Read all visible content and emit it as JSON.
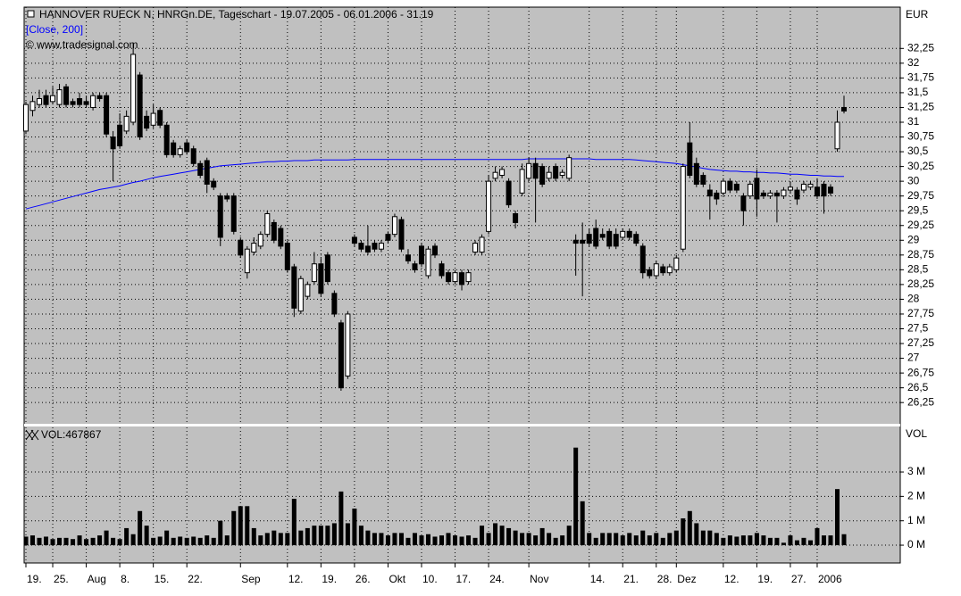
{
  "chart_data": [
    {
      "type": "candlestick",
      "title": "HANNOVER RUECK N, HNRGn.DE, Tageschart - 19.07.2005 - 06.01.2006 - 31.19",
      "source": "© www.tradesignal.com",
      "ylabel": "EUR",
      "up_color": "#ffffff",
      "down_color": "#000000",
      "grid": true,
      "categories": [
        "19.",
        null,
        null,
        null,
        "25.",
        null,
        null,
        null,
        null,
        "Aug",
        null,
        null,
        null,
        null,
        "8.",
        null,
        null,
        null,
        null,
        "15.",
        null,
        null,
        null,
        null,
        "22.",
        null,
        null,
        null,
        null,
        null,
        null,
        null,
        "Sep",
        null,
        null,
        null,
        null,
        null,
        null,
        "12.",
        null,
        null,
        null,
        null,
        "19.",
        null,
        null,
        null,
        null,
        "26.",
        null,
        null,
        null,
        null,
        "Okt",
        null,
        null,
        null,
        null,
        "10.",
        null,
        null,
        null,
        null,
        "17.",
        null,
        null,
        null,
        null,
        "24.",
        null,
        null,
        null,
        null,
        null,
        "Nov",
        null,
        null,
        null,
        null,
        null,
        null,
        null,
        null,
        "14.",
        null,
        null,
        null,
        null,
        "21.",
        null,
        null,
        null,
        null,
        "28.",
        null,
        null,
        "Dez",
        null,
        null,
        null,
        null,
        null,
        null,
        "12.",
        null,
        null,
        null,
        null,
        "19.",
        null,
        null,
        null,
        null,
        "27.",
        null,
        null,
        null,
        "2006",
        null,
        null,
        null,
        null
      ],
      "open": [
        30.85,
        31.2,
        31.3,
        31.45,
        31.35,
        31.3,
        31.6,
        31.35,
        31.4,
        31.35,
        31.25,
        31.45,
        31.45,
        30.75,
        30.95,
        30.85,
        31.0,
        31.8,
        31.1,
        30.95,
        31.2,
        30.95,
        30.65,
        30.45,
        30.65,
        30.55,
        30.3,
        30.35,
        30.0,
        29.75,
        29.75,
        29.75,
        29.0,
        28.45,
        28.8,
        28.9,
        29.1,
        29.3,
        29.2,
        28.95,
        28.55,
        27.8,
        28.05,
        28.3,
        28.6,
        28.75,
        28.1,
        27.6,
        26.7,
        29.05,
        28.95,
        28.9,
        28.95,
        28.85,
        29.1,
        29.1,
        29.35,
        28.75,
        28.6,
        28.9,
        28.4,
        28.9,
        28.6,
        28.45,
        28.3,
        28.45,
        28.3,
        28.8,
        28.8,
        29.15,
        30.05,
        30.1,
        30.0,
        29.45,
        29.8,
        30.05,
        30.3,
        30.25,
        30.05,
        30.25,
        30.1,
        30.05,
        29.0,
        29.0,
        29.1,
        29.2,
        29.1,
        29.15,
        29.1,
        29.05,
        29.15,
        29.1,
        28.9,
        28.5,
        28.4,
        28.55,
        28.45,
        28.5,
        28.85,
        30.65,
        30.3,
        30.1,
        29.85,
        29.8,
        29.8,
        30.0,
        29.95,
        29.75,
        29.75,
        30.05,
        29.8,
        29.75,
        29.8,
        29.75,
        29.85,
        29.85,
        29.85,
        29.9,
        29.9,
        29.95,
        29.9,
        30.55,
        31.25
      ],
      "high": [
        31.35,
        31.45,
        31.55,
        31.55,
        31.6,
        31.65,
        31.65,
        31.4,
        31.5,
        31.45,
        31.5,
        31.5,
        31.5,
        30.85,
        31.15,
        31.2,
        32.35,
        31.85,
        31.2,
        31.3,
        31.25,
        31.0,
        30.7,
        30.6,
        30.7,
        30.6,
        30.35,
        30.4,
        30.05,
        29.8,
        29.8,
        29.8,
        29.05,
        28.9,
        29.05,
        29.15,
        29.5,
        29.35,
        29.25,
        29.0,
        28.6,
        28.4,
        28.3,
        28.8,
        28.7,
        28.8,
        28.15,
        27.65,
        27.8,
        29.1,
        29.0,
        29.25,
        29.0,
        29.0,
        29.15,
        29.45,
        29.4,
        28.85,
        28.65,
        28.95,
        28.9,
        28.95,
        28.65,
        28.5,
        28.5,
        28.5,
        28.5,
        29.0,
        29.1,
        30.1,
        30.25,
        30.25,
        30.05,
        29.5,
        30.3,
        30.4,
        30.4,
        30.3,
        30.25,
        30.3,
        30.2,
        30.45,
        29.1,
        29.3,
        29.2,
        29.35,
        29.2,
        29.2,
        29.2,
        29.2,
        29.2,
        29.15,
        28.95,
        28.55,
        28.65,
        28.6,
        28.6,
        28.75,
        30.3,
        31.0,
        30.4,
        30.15,
        29.95,
        29.85,
        30.05,
        30.05,
        30.0,
        29.8,
        30.0,
        30.2,
        29.85,
        29.85,
        29.85,
        29.9,
        30.0,
        29.9,
        30.0,
        30.0,
        30.05,
        30.0,
        29.95,
        31.2,
        31.45
      ],
      "low": [
        30.8,
        31.1,
        31.25,
        31.25,
        31.3,
        31.25,
        31.25,
        31.25,
        31.25,
        31.25,
        31.2,
        31.35,
        30.75,
        30.0,
        30.55,
        30.8,
        30.95,
        30.7,
        30.85,
        30.9,
        30.9,
        30.4,
        30.4,
        30.4,
        30.45,
        30.25,
        30.05,
        29.8,
        29.85,
        28.9,
        29.65,
        29.1,
        28.7,
        28.35,
        28.75,
        28.85,
        29.05,
        28.95,
        28.85,
        28.45,
        27.7,
        27.75,
        28.0,
        28.25,
        28.05,
        28.25,
        27.7,
        26.45,
        26.65,
        28.9,
        28.8,
        28.75,
        28.8,
        28.8,
        28.95,
        29.05,
        28.8,
        28.6,
        28.45,
        28.55,
        28.35,
        28.7,
        28.35,
        28.25,
        28.25,
        28.15,
        28.25,
        28.75,
        28.75,
        29.1,
        30.0,
        30.05,
        29.55,
        29.2,
        29.75,
        30.0,
        29.3,
        29.9,
        30.0,
        30.0,
        30.05,
        30.0,
        28.4,
        28.05,
        28.9,
        28.85,
        29.0,
        28.85,
        28.85,
        29.0,
        29.0,
        28.9,
        28.35,
        28.35,
        28.35,
        28.4,
        28.4,
        28.45,
        28.8,
        30.05,
        29.9,
        29.9,
        29.35,
        29.6,
        29.75,
        29.8,
        29.8,
        29.25,
        29.7,
        29.4,
        29.7,
        29.7,
        29.3,
        29.7,
        29.8,
        29.6,
        29.8,
        29.85,
        29.7,
        29.45,
        29.75,
        30.5,
        31.15
      ],
      "close": [
        31.3,
        31.35,
        31.4,
        31.3,
        31.45,
        31.55,
        31.3,
        31.3,
        31.3,
        31.3,
        31.45,
        31.4,
        30.8,
        30.55,
        30.6,
        31.1,
        32.15,
        30.75,
        30.9,
        31.15,
        30.95,
        30.45,
        30.45,
        30.55,
        30.5,
        30.3,
        30.1,
        29.95,
        29.9,
        29.05,
        29.7,
        29.15,
        28.75,
        28.85,
        28.95,
        29.1,
        29.45,
        29.0,
        28.9,
        28.5,
        27.85,
        28.35,
        28.25,
        28.6,
        28.1,
        28.3,
        27.75,
        26.5,
        27.75,
        28.95,
        28.85,
        28.8,
        28.85,
        28.95,
        29.0,
        29.4,
        28.85,
        28.65,
        28.5,
        28.6,
        28.85,
        28.75,
        28.4,
        28.3,
        28.45,
        28.25,
        28.45,
        28.95,
        29.05,
        30.0,
        30.15,
        30.2,
        29.6,
        29.3,
        30.2,
        30.3,
        30.05,
        29.95,
        30.15,
        30.05,
        30.15,
        30.4,
        28.95,
        28.95,
        28.95,
        28.9,
        29.05,
        28.9,
        28.9,
        29.15,
        29.05,
        28.95,
        28.45,
        28.4,
        28.6,
        28.45,
        28.55,
        28.7,
        30.25,
        30.1,
        29.95,
        29.95,
        29.75,
        29.7,
        30.0,
        29.85,
        29.85,
        29.5,
        29.95,
        29.7,
        29.75,
        29.8,
        29.75,
        29.85,
        29.9,
        29.7,
        29.95,
        29.95,
        29.75,
        29.75,
        29.8,
        31.0,
        31.19
      ],
      "ma": {
        "name": "[Close, 200]",
        "color": "#0000ff",
        "values": [
          29.53,
          29.56,
          29.59,
          29.62,
          29.65,
          29.68,
          29.71,
          29.74,
          29.77,
          29.8,
          29.83,
          29.86,
          29.88,
          29.9,
          29.92,
          29.95,
          29.98,
          30.0,
          30.03,
          30.06,
          30.08,
          30.1,
          30.12,
          30.14,
          30.16,
          30.18,
          30.2,
          30.22,
          30.24,
          30.26,
          30.27,
          30.28,
          30.29,
          30.3,
          30.31,
          30.32,
          30.33,
          30.33,
          30.34,
          30.34,
          30.35,
          30.35,
          30.35,
          30.36,
          30.36,
          30.36,
          30.36,
          30.36,
          30.36,
          30.37,
          30.37,
          30.37,
          30.37,
          30.37,
          30.37,
          30.37,
          30.37,
          30.37,
          30.37,
          30.37,
          30.37,
          30.37,
          30.37,
          30.37,
          30.37,
          30.37,
          30.37,
          30.37,
          30.37,
          30.37,
          30.37,
          30.37,
          30.37,
          30.37,
          30.37,
          30.38,
          30.38,
          30.38,
          30.38,
          30.38,
          30.38,
          30.38,
          30.38,
          30.38,
          30.38,
          30.37,
          30.37,
          30.37,
          30.37,
          30.37,
          30.37,
          30.36,
          30.35,
          30.34,
          30.33,
          30.32,
          30.31,
          30.3,
          30.28,
          30.26,
          30.24,
          30.22,
          30.2,
          30.19,
          30.18,
          30.17,
          30.17,
          30.16,
          30.16,
          30.15,
          30.15,
          30.14,
          30.14,
          30.13,
          30.12,
          30.12,
          30.11,
          30.1,
          30.1,
          30.09,
          30.09,
          30.08,
          30.08
        ]
      },
      "ylim": [
        25.89,
        32.95
      ],
      "yticks": [
        {
          "value": 26.25,
          "label": "26,25"
        },
        {
          "value": 26.5,
          "label": "26,5"
        },
        {
          "value": 26.75,
          "label": "26,75"
        },
        27,
        {
          "value": 27.25,
          "label": "27,25"
        },
        {
          "value": 27.5,
          "label": "27,5"
        },
        {
          "value": 27.75,
          "label": "27,75"
        },
        28,
        {
          "value": 28.25,
          "label": "28,25"
        },
        {
          "value": 28.5,
          "label": "28,5"
        },
        {
          "value": 28.75,
          "label": "28,75"
        },
        29,
        {
          "value": 29.25,
          "label": "29,25"
        },
        {
          "value": 29.5,
          "label": "29,5"
        },
        {
          "value": 29.75,
          "label": "29,75"
        },
        30,
        {
          "value": 30.25,
          "label": "30,25"
        },
        {
          "value": 30.5,
          "label": "30,5"
        },
        {
          "value": 30.75,
          "label": "30,75"
        },
        31,
        {
          "value": 31.25,
          "label": "31,25"
        },
        {
          "value": 31.5,
          "label": "31,5"
        },
        {
          "value": 31.75,
          "label": "31,75"
        },
        32,
        {
          "value": 32.25,
          "label": "32,25"
        }
      ]
    },
    {
      "type": "bar",
      "title": "VOL:467867",
      "ylabel": "VOL",
      "color": "#000000",
      "grid": true,
      "values": [
        0.35,
        0.4,
        0.3,
        0.35,
        0.25,
        0.3,
        0.3,
        0.25,
        0.4,
        0.25,
        0.3,
        0.4,
        0.6,
        0.3,
        0.25,
        0.7,
        0.45,
        1.4,
        0.8,
        0.3,
        0.35,
        0.6,
        0.3,
        0.35,
        0.3,
        0.35,
        0.3,
        0.4,
        0.3,
        1.0,
        0.4,
        1.4,
        1.6,
        1.6,
        0.7,
        0.4,
        0.5,
        0.6,
        0.5,
        0.5,
        1.9,
        0.6,
        0.7,
        0.8,
        0.8,
        0.8,
        0.9,
        2.2,
        0.9,
        1.5,
        0.8,
        0.6,
        0.5,
        0.5,
        0.4,
        0.5,
        0.5,
        0.3,
        0.5,
        0.4,
        0.45,
        0.35,
        0.4,
        0.5,
        0.4,
        0.35,
        0.4,
        0.3,
        0.8,
        0.5,
        0.9,
        0.8,
        0.7,
        0.6,
        0.5,
        0.5,
        0.4,
        0.7,
        0.5,
        0.3,
        0.4,
        0.8,
        4.0,
        1.8,
        0.5,
        0.3,
        0.5,
        0.5,
        0.5,
        0.4,
        0.5,
        0.4,
        0.6,
        0.4,
        0.5,
        0.3,
        0.5,
        0.6,
        1.1,
        1.4,
        0.9,
        0.6,
        0.6,
        0.5,
        0.3,
        0.4,
        0.35,
        0.4,
        0.4,
        0.5,
        0.4,
        0.3,
        0.3,
        0.1,
        0.4,
        0.2,
        0.3,
        0.2,
        0.7,
        0.4,
        0.4,
        2.3,
        0.45
      ],
      "ylim": [
        -0.73,
        4.83
      ],
      "yticks": [
        {
          "value": 0,
          "label": "0 M"
        },
        {
          "value": 1,
          "label": "1 M"
        },
        {
          "value": 2,
          "label": "2 M"
        },
        {
          "value": 3,
          "label": "3 M"
        }
      ]
    }
  ]
}
